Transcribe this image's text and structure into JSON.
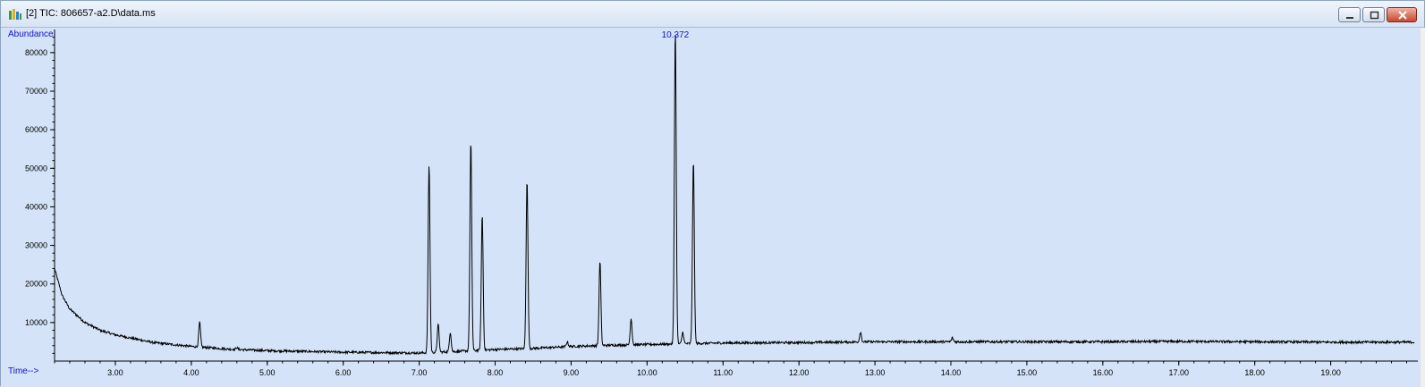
{
  "window": {
    "title": "[2] TIC: 806657-a2.D\\data.ms",
    "controls": [
      "minimize-icon",
      "maximize-icon",
      "close-icon"
    ]
  },
  "colors": {
    "plot_background": "#d4e3f8",
    "trace": "#000000",
    "axis_label": "#1010c8",
    "peak_label": "#1010c8"
  },
  "chart_data": {
    "type": "line",
    "title": "",
    "xlabel": "Time-->",
    "ylabel": "Abundance",
    "xlim": [
      2.2,
      20.1
    ],
    "ylim": [
      0,
      86000
    ],
    "x_ticks": [
      "3.00",
      "4.00",
      "5.00",
      "6.00",
      "7.00",
      "8.00",
      "9.00",
      "10.00",
      "11.00",
      "12.00",
      "13.00",
      "14.00",
      "15.00",
      "16.00",
      "17.00",
      "18.00",
      "19.00"
    ],
    "y_ticks": [
      "10000",
      "20000",
      "30000",
      "40000",
      "50000",
      "60000",
      "70000",
      "80000"
    ],
    "grid": false,
    "baseline": [
      [
        2.2,
        24000
      ],
      [
        2.3,
        17000
      ],
      [
        2.4,
        13500
      ],
      [
        2.6,
        10000
      ],
      [
        2.8,
        8000
      ],
      [
        3.0,
        6800
      ],
      [
        3.5,
        4800
      ],
      [
        4.0,
        3800
      ],
      [
        4.5,
        3100
      ],
      [
        5.0,
        2700
      ],
      [
        5.5,
        2500
      ],
      [
        6.0,
        2300
      ],
      [
        6.5,
        2200
      ],
      [
        7.0,
        2100
      ],
      [
        7.5,
        2500
      ],
      [
        8.0,
        3000
      ],
      [
        8.5,
        3300
      ],
      [
        9.0,
        3800
      ],
      [
        9.5,
        4100
      ],
      [
        10.0,
        4300
      ],
      [
        10.5,
        4500
      ],
      [
        11.0,
        4700
      ],
      [
        12.0,
        4800
      ],
      [
        13.0,
        5000
      ],
      [
        14.0,
        5000
      ],
      [
        15.0,
        5000
      ],
      [
        16.0,
        5000
      ],
      [
        17.0,
        5100
      ],
      [
        18.0,
        5000
      ],
      [
        19.0,
        4900
      ],
      [
        20.1,
        4900
      ]
    ],
    "peaks": [
      {
        "rt": 4.11,
        "height": 10000
      },
      {
        "rt": 4.6,
        "height": 3500
      },
      {
        "rt": 7.13,
        "height": 51000
      },
      {
        "rt": 7.25,
        "height": 9500
      },
      {
        "rt": 7.41,
        "height": 7500
      },
      {
        "rt": 7.68,
        "height": 57000
      },
      {
        "rt": 7.83,
        "height": 38000
      },
      {
        "rt": 8.42,
        "height": 47000
      },
      {
        "rt": 8.95,
        "height": 5000
      },
      {
        "rt": 9.38,
        "height": 26000
      },
      {
        "rt": 9.79,
        "height": 11000
      },
      {
        "rt": 10.372,
        "height": 86000
      },
      {
        "rt": 10.47,
        "height": 7500
      },
      {
        "rt": 10.61,
        "height": 52000
      },
      {
        "rt": 12.81,
        "height": 7500
      },
      {
        "rt": 14.02,
        "height": 6000
      }
    ],
    "annotations": [
      {
        "text": "10.372",
        "x": 10.372,
        "y": 86000
      }
    ]
  }
}
